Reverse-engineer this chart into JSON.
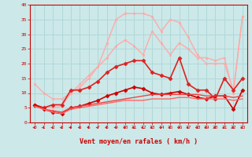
{
  "x": [
    0,
    1,
    2,
    3,
    4,
    5,
    6,
    7,
    8,
    9,
    10,
    11,
    12,
    13,
    14,
    15,
    16,
    17,
    18,
    19,
    20,
    21,
    22,
    23
  ],
  "series": [
    {
      "y": [
        6,
        5,
        5,
        5.5,
        10,
        12,
        15,
        19,
        27,
        35,
        37,
        37,
        37,
        36,
        31,
        35,
        34,
        29,
        23,
        20,
        20,
        20,
        11,
        36
      ],
      "color": "#ffaaaa",
      "lw": 1.0,
      "marker": "s",
      "ms": 2.0
    },
    {
      "y": [
        13,
        10,
        8,
        8,
        10,
        13,
        16,
        19,
        22,
        26,
        28,
        26,
        23,
        31,
        27,
        23,
        27,
        25,
        22,
        22,
        21,
        22,
        10,
        36
      ],
      "color": "#ffaaaa",
      "lw": 1.0,
      "marker": "s",
      "ms": 2.0
    },
    {
      "y": [
        6,
        5,
        6,
        6,
        11,
        11,
        12,
        14,
        17,
        19,
        20,
        21,
        21,
        17,
        16,
        15,
        22,
        13,
        11,
        11,
        8,
        15,
        11,
        15
      ],
      "color": "#dd2222",
      "lw": 1.2,
      "marker": "D",
      "ms": 2.5
    },
    {
      "y": [
        6,
        4.5,
        3.5,
        3,
        5,
        5.5,
        6.5,
        7.5,
        9,
        10,
        11,
        12,
        11.5,
        10,
        9.5,
        10,
        10.5,
        9.5,
        8.5,
        8,
        9,
        9,
        4.5,
        11
      ],
      "color": "#cc0000",
      "lw": 1.2,
      "marker": "D",
      "ms": 2.5
    },
    {
      "y": [
        5.5,
        4.5,
        4,
        3.5,
        5,
        5.5,
        6,
        6.5,
        7,
        7.5,
        8,
        8.5,
        9,
        9.5,
        9.5,
        9.5,
        9.5,
        9.5,
        9.5,
        9,
        9,
        9,
        8.5,
        9
      ],
      "color": "#ee4444",
      "lw": 1.0,
      "marker": null,
      "ms": 0
    },
    {
      "y": [
        5.5,
        4.5,
        3.5,
        3.0,
        4.5,
        5,
        5.5,
        6,
        6.5,
        7,
        7.5,
        7.5,
        7.5,
        8,
        8,
        8,
        8.5,
        8.5,
        8,
        8,
        8,
        8,
        7.5,
        8
      ],
      "color": "#ff6666",
      "lw": 1.0,
      "marker": null,
      "ms": 0
    }
  ],
  "xlabel": "Vent moyen/en rafales ( km/h )",
  "xlim": [
    -0.5,
    23.5
  ],
  "ylim": [
    0,
    40
  ],
  "yticks": [
    0,
    5,
    10,
    15,
    20,
    25,
    30,
    35,
    40
  ],
  "xticks": [
    0,
    1,
    2,
    3,
    4,
    5,
    6,
    7,
    8,
    9,
    10,
    11,
    12,
    13,
    14,
    15,
    16,
    17,
    18,
    19,
    20,
    21,
    22,
    23
  ],
  "bg_color": "#cce8e8",
  "grid_color": "#b0d8d8",
  "tick_color": "#cc0000",
  "label_color": "#cc0000"
}
